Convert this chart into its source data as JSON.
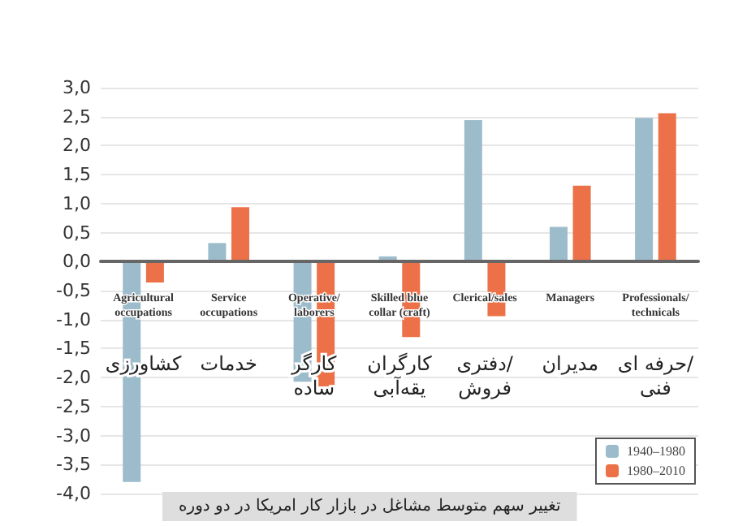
{
  "chart_data": {
    "type": "bar",
    "title": "تغییر سهم متوسط مشاغل در بازار کار امریکا در دو دوره",
    "categories": [
      "Agricultural\noccupations",
      "Service\noccupations",
      "Operative/\nlaborers",
      "Skilled blue\ncollar (craft)",
      "Clerical/sales",
      "Managers",
      "Professionals/\ntechnicals"
    ],
    "series": [
      {
        "name": "1940–1980",
        "color": "#9dbccb",
        "values": [
          -3.8,
          0.32,
          -2.07,
          0.09,
          2.44,
          0.6,
          2.48
        ]
      },
      {
        "name": "1980–2010",
        "color": "#ec7148",
        "values": [
          -0.36,
          0.94,
          -2.19,
          -1.3,
          -0.94,
          1.31,
          2.56
        ]
      }
    ],
    "ylim": [
      -4.0,
      3.0
    ],
    "yticks": [
      {
        "value": -4.0,
        "label": "-4,0"
      },
      {
        "value": -3.5,
        "label": "-3,5"
      },
      {
        "value": -3.0,
        "label": "-3,0"
      },
      {
        "value": -2.5,
        "label": "-2,5"
      },
      {
        "value": -2.0,
        "label": "-2,0"
      },
      {
        "value": -1.5,
        "label": "-1,5"
      },
      {
        "value": -1.0,
        "label": "-1,0"
      },
      {
        "value": -0.5,
        "label": "-0,5"
      },
      {
        "value": 0.0,
        "label": "0,0"
      },
      {
        "value": 0.5,
        "label": "0,5"
      },
      {
        "value": 1.0,
        "label": "1,0"
      },
      {
        "value": 1.5,
        "label": "1,5"
      },
      {
        "value": 2.0,
        "label": "2,0"
      },
      {
        "value": 2.5,
        "label": "2,5"
      },
      {
        "value": 3.0,
        "label": "3,0"
      }
    ],
    "annotations": [
      "کشاورزی",
      "خدمات",
      "کارگر\nساده",
      "کارگران\nیقه‌آبی",
      "دفتری/\nفروش",
      "مدیران",
      "حرفه ای/\nفنی"
    ],
    "grid": "y",
    "legend": "bottom right"
  }
}
